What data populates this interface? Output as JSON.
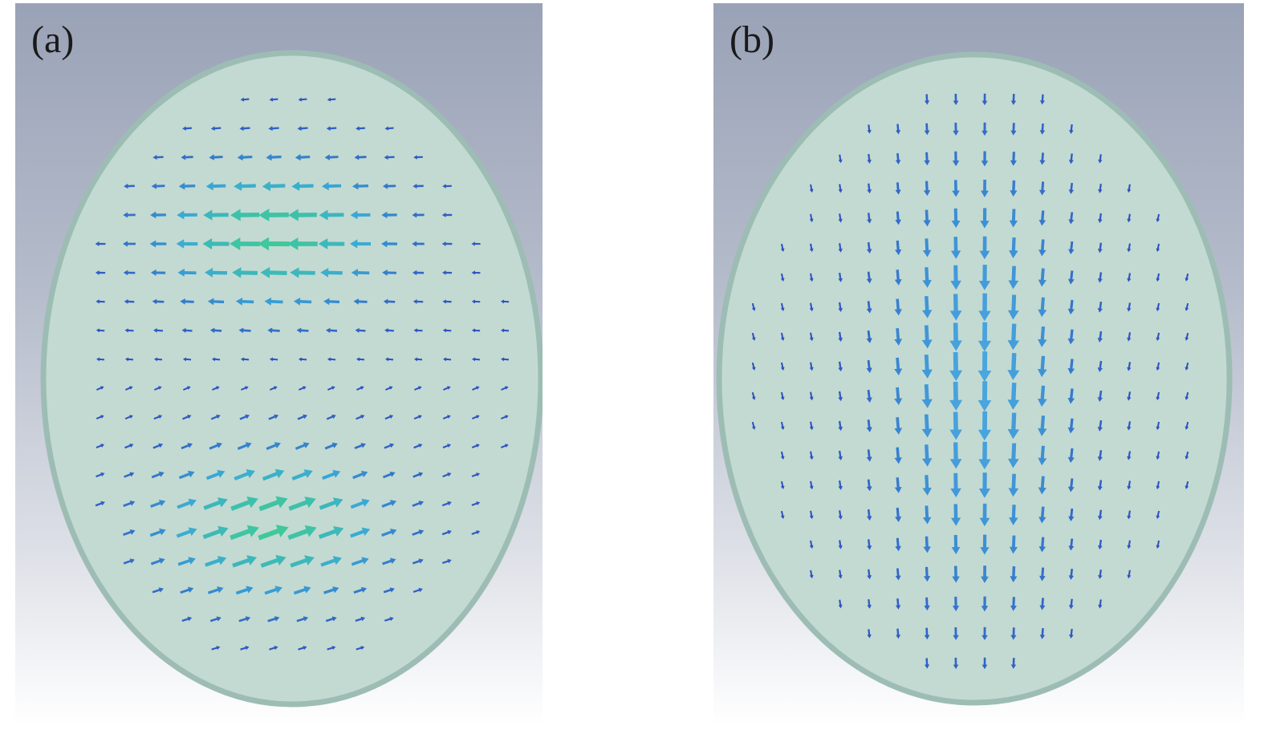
{
  "panels": [
    {
      "id": "a",
      "label": "(a)",
      "description_field": "horizontal",
      "colors": {
        "background_top": "#9aa2b7",
        "background_bottom": "#ffffff",
        "disc": "#c3dad2",
        "disc_rim": "#9dbdb4",
        "arrow_weak": "#2e50c0",
        "arrow_mid": "#3aa9d6",
        "arrow_strong": "#3fc99a"
      }
    },
    {
      "id": "b",
      "label": "(b)",
      "description_field": "vertical",
      "colors": {
        "background_top": "#9aa2b7",
        "background_bottom": "#ffffff",
        "disc": "#c3dad2",
        "disc_rim": "#9dbdb4",
        "arrow_weak": "#2e50c0",
        "arrow_mid": "#3b8fd4",
        "arrow_strong": "#4aa6de"
      }
    }
  ]
}
